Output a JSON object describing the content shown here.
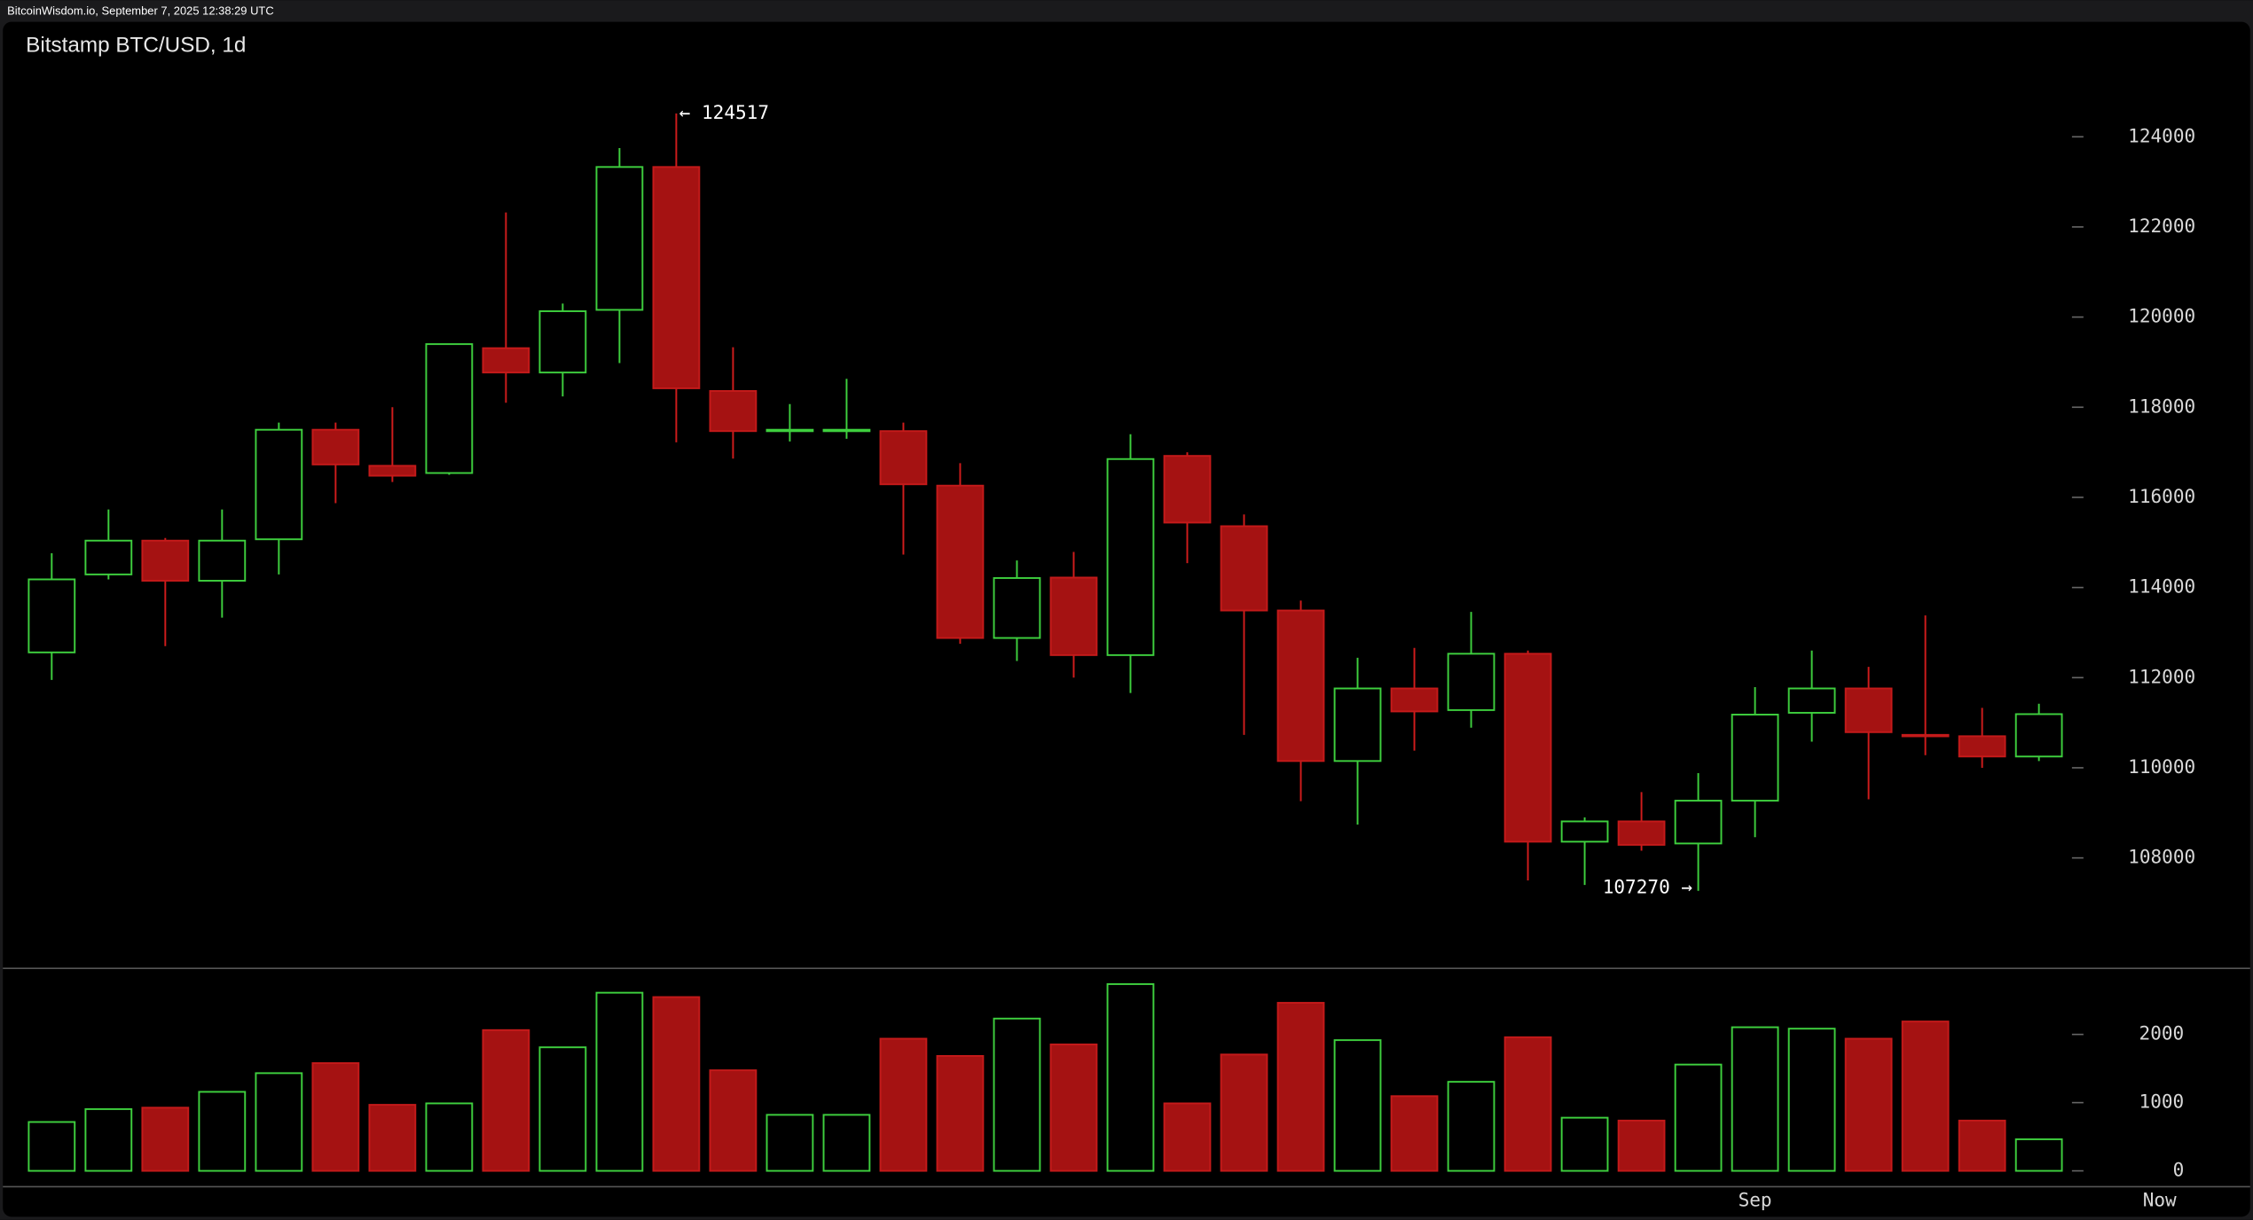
{
  "header": "BitcoinWisdom.io, September 7, 2025 12:38:29 UTC",
  "chart_data": {
    "type": "candlestick",
    "title": "Bitstamp BTC/USD, 1d",
    "x": [
      null,
      null,
      null,
      null,
      null,
      null,
      null,
      null,
      null,
      null,
      null,
      null,
      null,
      null,
      null,
      null,
      null,
      null,
      null,
      null,
      null,
      null,
      null,
      null,
      null,
      null,
      null,
      null,
      null,
      null,
      "Sep",
      null,
      null,
      null,
      null,
      null
    ],
    "end_label": "Now",
    "open": [
      112560,
      114290,
      115040,
      114150,
      115070,
      117500,
      116700,
      116540,
      119310,
      118770,
      120160,
      123330,
      118360,
      117470,
      117470,
      117470,
      116260,
      112880,
      114220,
      112500,
      116920,
      115360,
      113490,
      110150,
      111760,
      111280,
      112530,
      108360,
      108810,
      108320,
      109270,
      111220,
      111760,
      110730,
      110700,
      110250
    ],
    "high": [
      114760,
      115730,
      115100,
      115730,
      117660,
      117660,
      118000,
      119400,
      122320,
      120300,
      123750,
      124517,
      119330,
      118070,
      118630,
      117660,
      116760,
      114600,
      114790,
      117400,
      117000,
      115620,
      113710,
      112440,
      112660,
      113460,
      112600,
      108900,
      109460,
      109880,
      111790,
      112600,
      112240,
      113380,
      111330,
      111420
    ],
    "low": [
      111950,
      114180,
      112700,
      113330,
      114290,
      115870,
      116340,
      116500,
      118100,
      118240,
      118980,
      117220,
      116860,
      117240,
      117300,
      114730,
      112750,
      112370,
      112000,
      111660,
      114540,
      110730,
      109260,
      108740,
      110380,
      110890,
      107500,
      107400,
      108160,
      107270,
      108460,
      110580,
      109300,
      110280,
      110000,
      110150
    ],
    "close": [
      114180,
      115040,
      114150,
      115040,
      117500,
      116730,
      116480,
      119400,
      118770,
      120130,
      123330,
      118420,
      117470,
      117500,
      117500,
      116290,
      112880,
      114210,
      112500,
      116850,
      115440,
      113490,
      110150,
      111760,
      111250,
      112530,
      108360,
      108810,
      108290,
      109270,
      111180,
      111760,
      110790,
      110700,
      110250,
      111190
    ],
    "volume": [
      716,
      905,
      926,
      1158,
      1432,
      1579,
      968,
      989,
      2063,
      1811,
      2611,
      2547,
      1474,
      821,
      821,
      1937,
      1684,
      2232,
      1853,
      2737,
      989,
      1705,
      2463,
      1916,
      1095,
      1305,
      1958,
      779,
      737,
      1558,
      2105,
      2084,
      1937,
      2189,
      737,
      463
    ],
    "ylim": [
      105550,
      126550
    ],
    "yticks": [
      108000,
      110000,
      112000,
      114000,
      116000,
      118000,
      120000,
      122000,
      124000
    ],
    "volume_ylim": [
      0,
      2926
    ],
    "volume_yticks": [
      0,
      1000,
      2000
    ],
    "annotations": [
      {
        "label": "← 124517",
        "value": 124517
      },
      {
        "label": "107270 →",
        "value": 107270
      }
    ],
    "up_color": "#3ecf3e",
    "down_color": "#a51212"
  }
}
